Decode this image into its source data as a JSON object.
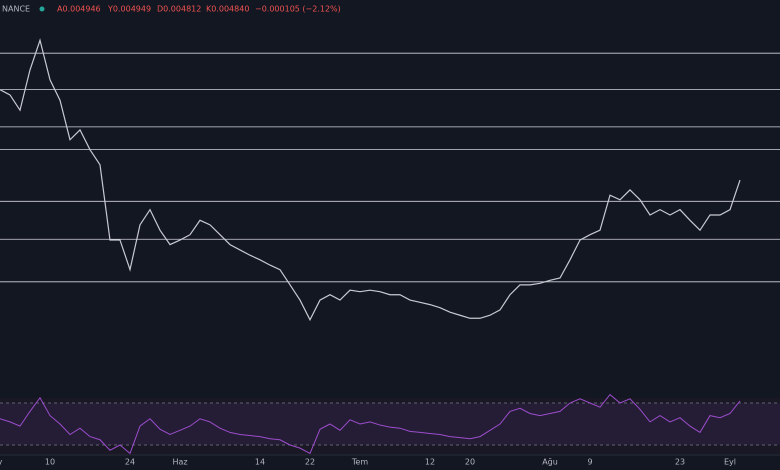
{
  "header": {
    "exchange": "NANCE",
    "ohlc": [
      "A0.004946",
      "Y0.004949",
      "D0.004812",
      "K0.004840",
      "−0.000105 (−2.12%)"
    ]
  },
  "chart_data": {
    "type": "line",
    "categories": [
      "y",
      null,
      null,
      null,
      null,
      "10",
      null,
      null,
      null,
      null,
      null,
      null,
      null,
      "24",
      null,
      null,
      null,
      null,
      "Haz",
      null,
      null,
      null,
      null,
      null,
      null,
      null,
      "14",
      null,
      null,
      null,
      null,
      "22",
      null,
      null,
      null,
      null,
      "Tem",
      null,
      null,
      null,
      null,
      null,
      null,
      "12",
      null,
      null,
      null,
      "20",
      null,
      null,
      null,
      null,
      null,
      null,
      null,
      "Ağu",
      null,
      null,
      null,
      "9",
      null,
      null,
      null,
      null,
      null,
      null,
      null,
      null,
      "23",
      null,
      null,
      null,
      null,
      "Eyl",
      null
    ],
    "series": [
      {
        "color": "#c7cad1",
        "values": [
          0.00602,
          0.00595,
          0.00575,
          0.00628,
          0.00667,
          0.00615,
          0.00588,
          0.00536,
          0.00549,
          0.00523,
          0.00503,
          0.00404,
          0.00404,
          0.00365,
          0.00424,
          0.00444,
          0.00417,
          0.00398,
          0.00404,
          0.00411,
          0.0043,
          0.00424,
          0.00411,
          0.00398,
          0.00391,
          0.00384,
          0.00378,
          0.00371,
          0.00365,
          0.00345,
          0.00325,
          0.00299,
          0.00325,
          0.00332,
          0.00325,
          0.00338,
          0.00336,
          0.00338,
          0.00336,
          0.00332,
          0.00332,
          0.00325,
          0.00322,
          0.00319,
          0.00315,
          0.00309,
          0.00305,
          0.00301,
          0.00301,
          0.00305,
          0.00312,
          0.00332,
          0.00345,
          0.00345,
          0.00347,
          0.00351,
          0.00354,
          0.00378,
          0.00404,
          0.00411,
          0.00417,
          0.00463,
          0.00457,
          0.0047,
          0.00457,
          0.00437,
          0.00444,
          0.00437,
          0.00444,
          0.0043,
          0.00417,
          0.00437,
          0.00437,
          0.00444,
          0.00483
        ]
      }
    ],
    "ylim": [
      0.002,
      0.0072
    ],
    "levels": [
      0.0065,
      0.00602,
      0.00553,
      0.00523,
      0.00455,
      0.00405,
      0.00349
    ],
    "levels_color": "#d1d4dc",
    "rsi": {
      "color": "#9c4dcc",
      "ylim": [
        0,
        100
      ],
      "yticks": [
        30,
        70
      ],
      "values": [
        55,
        52,
        48,
        62,
        75,
        58,
        50,
        40,
        46,
        38,
        35,
        25,
        30,
        22,
        48,
        55,
        45,
        40,
        44,
        48,
        55,
        52,
        46,
        42,
        40,
        39,
        38,
        36,
        35,
        30,
        27,
        22,
        45,
        50,
        44,
        54,
        50,
        52,
        49,
        47,
        46,
        43,
        42,
        41,
        40,
        38,
        37,
        36,
        38,
        44,
        50,
        62,
        65,
        60,
        58,
        60,
        62,
        70,
        74,
        70,
        66,
        78,
        70,
        74,
        64,
        52,
        58,
        52,
        56,
        48,
        42,
        58,
        56,
        60,
        72
      ]
    }
  }
}
